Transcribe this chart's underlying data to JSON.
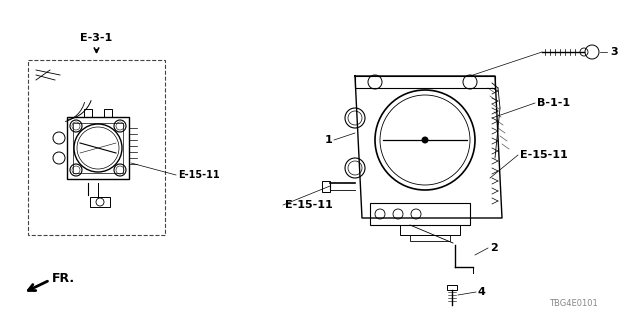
{
  "bg_color": "#ffffff",
  "line_color": "#000000",
  "part_code": "TBG4E0101",
  "labels": {
    "E31": "E-3-1",
    "B11": "B-1-1",
    "E1511a": "E-15-11",
    "E1511b": "E-15-11",
    "num1": "1",
    "num2": "2",
    "num3": "3",
    "num4": "4",
    "fr": "FR."
  },
  "font_size_labels": 7,
  "font_size_partcode": 6
}
